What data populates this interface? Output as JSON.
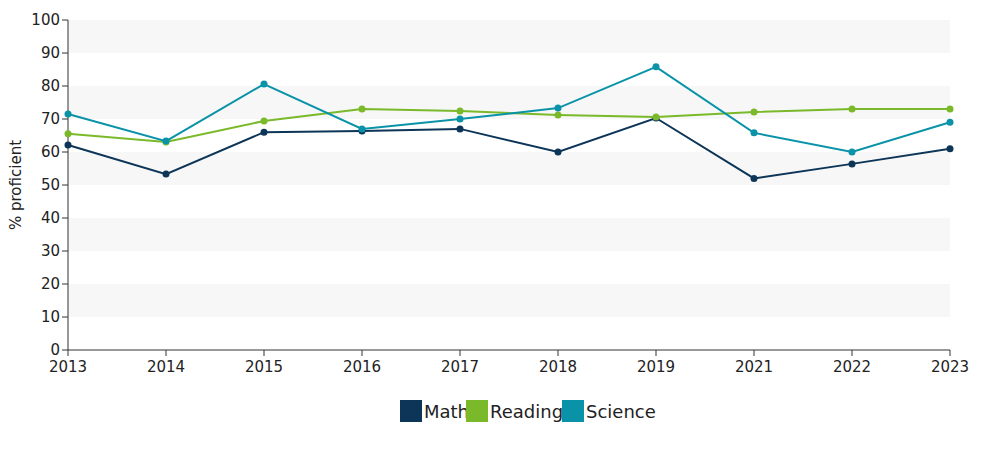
{
  "chart_data": {
    "type": "line",
    "y_label": "% proficient",
    "categories": [
      "2013",
      "2014",
      "2015",
      "2016",
      "2017",
      "2018",
      "2019",
      "2021",
      "2022",
      "2023"
    ],
    "series": [
      {
        "name": "Math",
        "color": "#0d3558",
        "marker": "circle",
        "values": [
          62.1,
          53.3,
          66,
          66.4,
          67,
          60,
          70.3,
          52,
          56.4,
          61
        ]
      },
      {
        "name": "Reading",
        "color": "#7ab929",
        "marker": "circle",
        "values": [
          65.5,
          63,
          69.4,
          73,
          72.4,
          71.2,
          70.6,
          72.1,
          73,
          73
        ]
      },
      {
        "name": "Science",
        "color": "#0a93a8",
        "marker": "circle",
        "values": [
          71.5,
          63.3,
          80.6,
          67,
          70,
          73.3,
          85.8,
          65.8,
          60,
          69
        ]
      }
    ],
    "ylim": [
      0,
      100
    ],
    "yticks": [
      0,
      10,
      20,
      30,
      40,
      50,
      60,
      70,
      80,
      90,
      100
    ],
    "grid": true,
    "legend": "bottom"
  }
}
